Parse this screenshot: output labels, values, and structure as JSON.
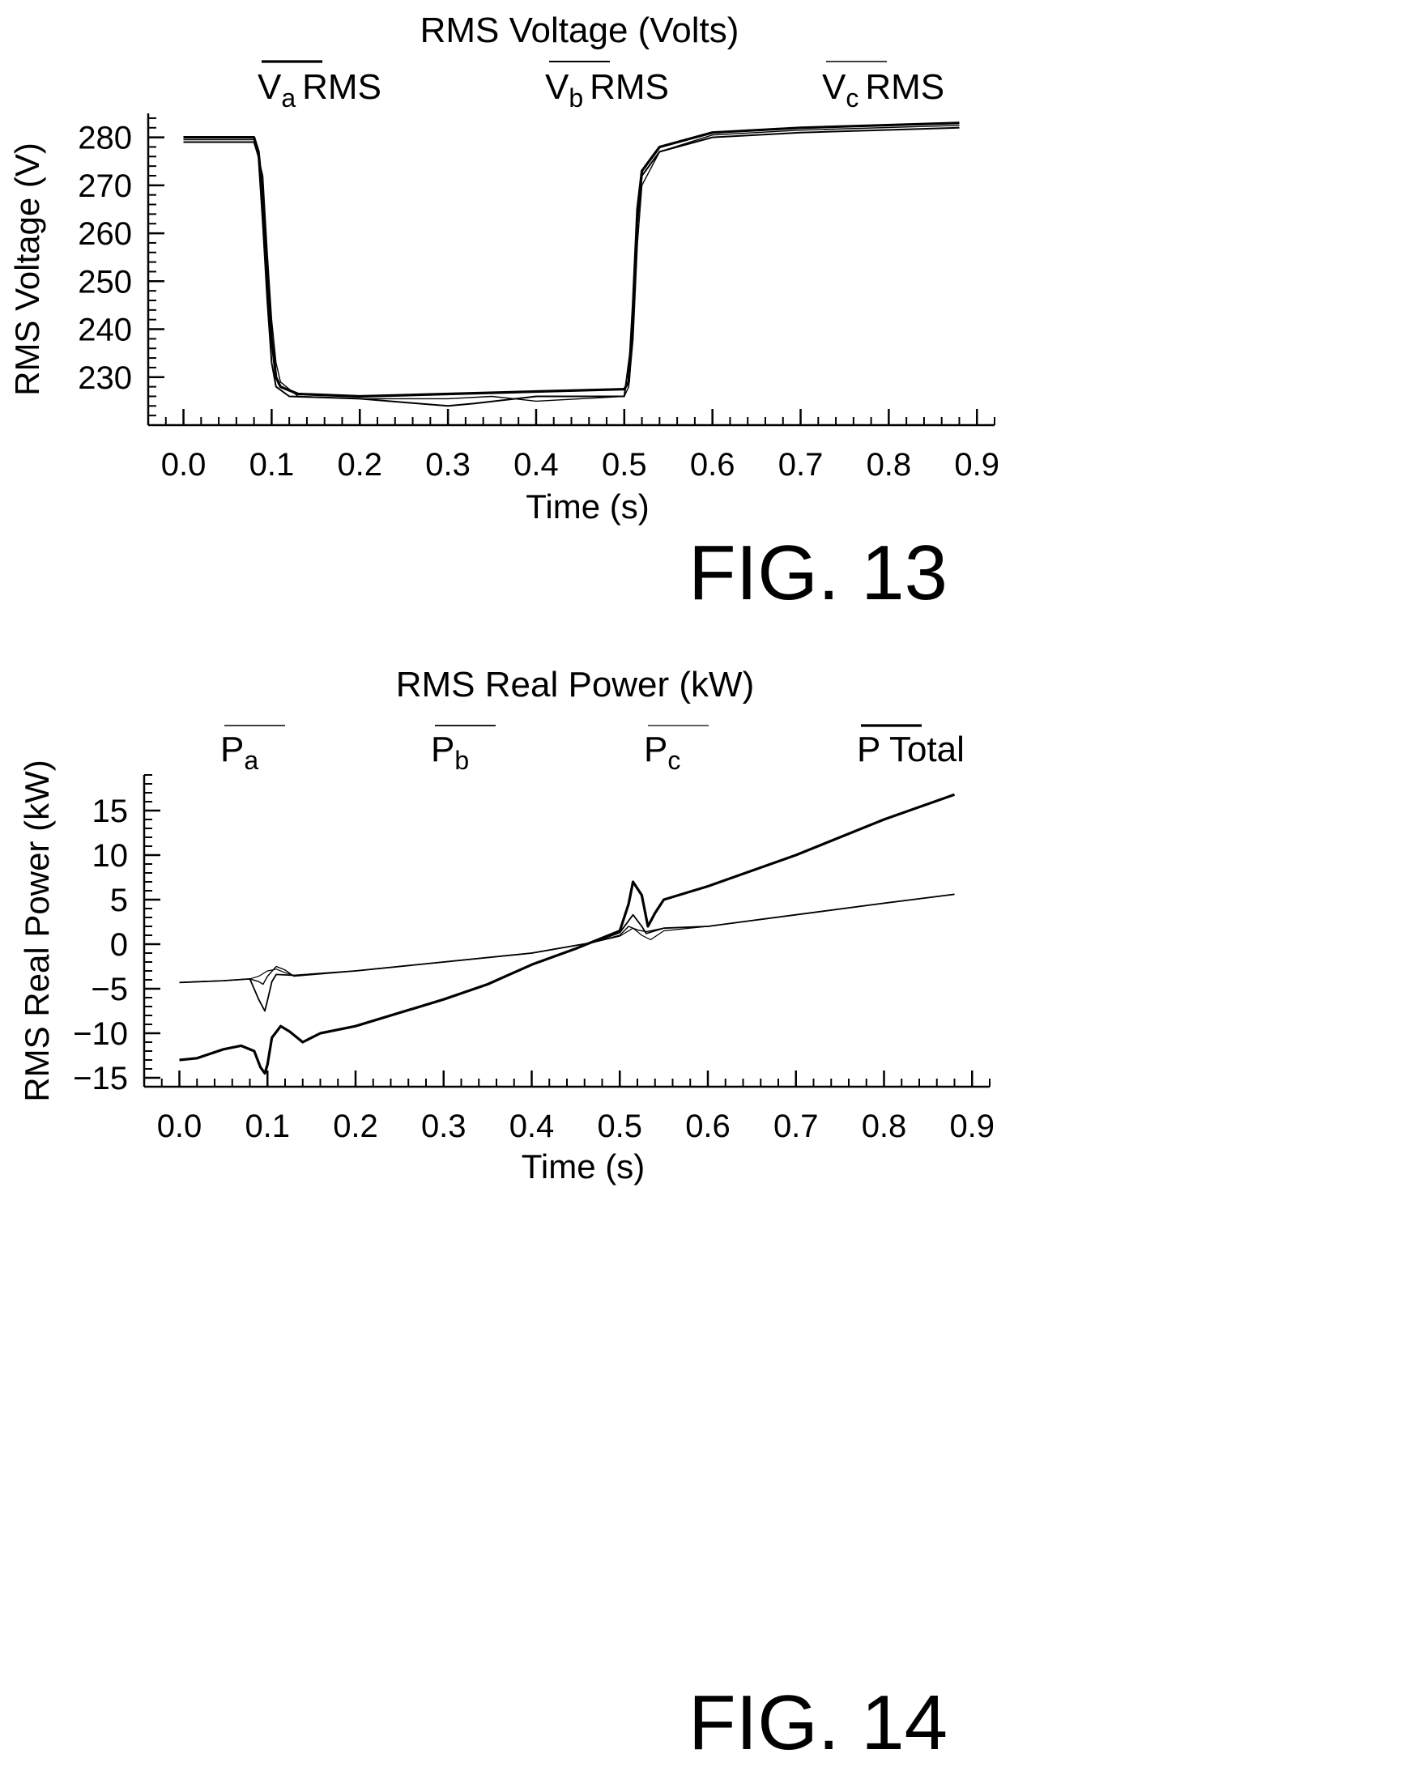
{
  "chart_data": [
    {
      "type": "line",
      "title": "RMS Voltage (Volts)",
      "xlabel": "Time (s)",
      "ylabel": "RMS Voltage (V)",
      "xlim": [
        -0.04,
        0.92
      ],
      "ylim": [
        220,
        285
      ],
      "xticks": [
        "0.0",
        "0.1",
        "0.2",
        "0.3",
        "0.4",
        "0.5",
        "0.6",
        "0.7",
        "0.8",
        "0.9"
      ],
      "yticks": [
        "230",
        "240",
        "250",
        "260",
        "270",
        "280"
      ],
      "legend_position": "top",
      "figure_label": "FIG. 13",
      "series": [
        {
          "name": "Va RMS",
          "legend_main": "V",
          "legend_sub": "a",
          "legend_suffix": "RMS",
          "points": [
            [
              0.0,
              280
            ],
            [
              0.08,
              280
            ],
            [
              0.085,
              277
            ],
            [
              0.09,
              268
            ],
            [
              0.095,
              252
            ],
            [
              0.1,
              238
            ],
            [
              0.105,
              230
            ],
            [
              0.11,
              228
            ],
            [
              0.13,
              226.5
            ],
            [
              0.2,
              226
            ],
            [
              0.3,
              226.5
            ],
            [
              0.4,
              227
            ],
            [
              0.5,
              227.5
            ],
            [
              0.505,
              229
            ],
            [
              0.51,
              245
            ],
            [
              0.515,
              265
            ],
            [
              0.52,
              273
            ],
            [
              0.54,
              278
            ],
            [
              0.6,
              281
            ],
            [
              0.7,
              282
            ],
            [
              0.88,
              283
            ]
          ]
        },
        {
          "name": "Vb RMS",
          "legend_main": "V",
          "legend_sub": "b",
          "legend_suffix": "RMS",
          "points": [
            [
              0.0,
              279
            ],
            [
              0.08,
              279
            ],
            [
              0.085,
              276
            ],
            [
              0.09,
              262
            ],
            [
              0.095,
              246
            ],
            [
              0.1,
              233
            ],
            [
              0.105,
              228
            ],
            [
              0.12,
              226
            ],
            [
              0.2,
              225.5
            ],
            [
              0.3,
              224
            ],
            [
              0.33,
              224.5
            ],
            [
              0.4,
              226
            ],
            [
              0.5,
              226
            ],
            [
              0.51,
              240
            ],
            [
              0.515,
              262
            ],
            [
              0.52,
              272
            ],
            [
              0.54,
              277
            ],
            [
              0.6,
              280
            ],
            [
              0.7,
              281
            ],
            [
              0.88,
              282
            ]
          ]
        },
        {
          "name": "Vc RMS",
          "legend_main": "V",
          "legend_sub": "c",
          "legend_suffix": "RMS",
          "points": [
            [
              0.0,
              279.5
            ],
            [
              0.08,
              279.5
            ],
            [
              0.09,
              272
            ],
            [
              0.095,
              256
            ],
            [
              0.1,
              242
            ],
            [
              0.105,
              233
            ],
            [
              0.11,
              229
            ],
            [
              0.13,
              226
            ],
            [
              0.2,
              225.5
            ],
            [
              0.3,
              225.5
            ],
            [
              0.35,
              226
            ],
            [
              0.4,
              225
            ],
            [
              0.5,
              226
            ],
            [
              0.505,
              228
            ],
            [
              0.51,
              238
            ],
            [
              0.515,
              258
            ],
            [
              0.52,
              270
            ],
            [
              0.54,
              277
            ],
            [
              0.6,
              280.5
            ],
            [
              0.7,
              281.5
            ],
            [
              0.88,
              282.5
            ]
          ]
        }
      ]
    },
    {
      "type": "line",
      "title": "RMS Real Power (kW)",
      "xlabel": "Time (s)",
      "ylabel": "RMS Real Power (kW)",
      "xlim": [
        -0.04,
        0.92
      ],
      "ylim": [
        -16,
        19
      ],
      "xticks": [
        "0.0",
        "0.1",
        "0.2",
        "0.3",
        "0.4",
        "0.5",
        "0.6",
        "0.7",
        "0.8",
        "0.9"
      ],
      "yticks": [
        "−15",
        "−10",
        "−5",
        "0",
        "5",
        "10",
        "15"
      ],
      "legend_position": "top",
      "figure_label": "FIG. 14",
      "series": [
        {
          "name": "Pa",
          "legend_main": "P",
          "legend_sub": "a",
          "legend_suffix": "",
          "points": [
            [
              0.0,
              -4.3
            ],
            [
              0.05,
              -4.1
            ],
            [
              0.08,
              -3.9
            ],
            [
              0.09,
              -4.2
            ],
            [
              0.095,
              -4.5
            ],
            [
              0.1,
              -3.6
            ],
            [
              0.11,
              -2.5
            ],
            [
              0.12,
              -2.9
            ],
            [
              0.13,
              -3.6
            ],
            [
              0.2,
              -3.0
            ],
            [
              0.3,
              -2.0
            ],
            [
              0.4,
              -1.0
            ],
            [
              0.47,
              0.2
            ],
            [
              0.5,
              1.0
            ],
            [
              0.51,
              2.0
            ],
            [
              0.52,
              1.6
            ],
            [
              0.53,
              1.4
            ],
            [
              0.55,
              1.8
            ],
            [
              0.6,
              2.0
            ],
            [
              0.7,
              3.3
            ],
            [
              0.8,
              4.6
            ],
            [
              0.88,
              5.6
            ]
          ]
        },
        {
          "name": "Pb",
          "legend_main": "P",
          "legend_sub": "b",
          "legend_suffix": "",
          "points": [
            [
              0.0,
              -4.3
            ],
            [
              0.05,
              -4.1
            ],
            [
              0.08,
              -3.9
            ],
            [
              0.09,
              -6.2
            ],
            [
              0.097,
              -7.5
            ],
            [
              0.1,
              -6.3
            ],
            [
              0.105,
              -4.2
            ],
            [
              0.11,
              -3.4
            ],
            [
              0.13,
              -3.5
            ],
            [
              0.2,
              -3.0
            ],
            [
              0.3,
              -2.0
            ],
            [
              0.4,
              -1.0
            ],
            [
              0.47,
              0.2
            ],
            [
              0.5,
              1.3
            ],
            [
              0.515,
              3.3
            ],
            [
              0.525,
              2.0
            ],
            [
              0.53,
              1.2
            ],
            [
              0.55,
              1.8
            ],
            [
              0.6,
              2.0
            ],
            [
              0.7,
              3.3
            ],
            [
              0.8,
              4.6
            ],
            [
              0.88,
              5.6
            ]
          ]
        },
        {
          "name": "Pc",
          "legend_main": "P",
          "legend_sub": "c",
          "legend_suffix": "",
          "points": [
            [
              0.0,
              -4.3
            ],
            [
              0.05,
              -4.1
            ],
            [
              0.08,
              -3.9
            ],
            [
              0.09,
              -3.6
            ],
            [
              0.1,
              -3.0
            ],
            [
              0.11,
              -2.8
            ],
            [
              0.12,
              -3.2
            ],
            [
              0.13,
              -3.5
            ],
            [
              0.2,
              -3.0
            ],
            [
              0.3,
              -2.0
            ],
            [
              0.4,
              -1.0
            ],
            [
              0.47,
              0.2
            ],
            [
              0.5,
              0.9
            ],
            [
              0.515,
              1.8
            ],
            [
              0.525,
              1.0
            ],
            [
              0.535,
              0.5
            ],
            [
              0.55,
              1.5
            ],
            [
              0.6,
              2.0
            ],
            [
              0.7,
              3.3
            ],
            [
              0.8,
              4.6
            ],
            [
              0.88,
              5.6
            ]
          ]
        },
        {
          "name": "P Total",
          "legend_main": "P Total",
          "legend_sub": "",
          "legend_suffix": "",
          "points": [
            [
              0.0,
              -13.0
            ],
            [
              0.02,
              -12.8
            ],
            [
              0.05,
              -11.8
            ],
            [
              0.07,
              -11.4
            ],
            [
              0.085,
              -12.0
            ],
            [
              0.092,
              -13.8
            ],
            [
              0.097,
              -14.5
            ],
            [
              0.1,
              -13.5
            ],
            [
              0.105,
              -10.5
            ],
            [
              0.115,
              -9.2
            ],
            [
              0.125,
              -9.8
            ],
            [
              0.14,
              -11.0
            ],
            [
              0.16,
              -10.0
            ],
            [
              0.2,
              -9.2
            ],
            [
              0.3,
              -6.2
            ],
            [
              0.35,
              -4.5
            ],
            [
              0.4,
              -2.3
            ],
            [
              0.45,
              -0.5
            ],
            [
              0.5,
              1.5
            ],
            [
              0.51,
              4.5
            ],
            [
              0.515,
              7.0
            ],
            [
              0.525,
              5.5
            ],
            [
              0.532,
              2.0
            ],
            [
              0.54,
              3.5
            ],
            [
              0.55,
              5.0
            ],
            [
              0.6,
              6.5
            ],
            [
              0.7,
              10.0
            ],
            [
              0.8,
              14.0
            ],
            [
              0.88,
              16.8
            ]
          ]
        }
      ]
    }
  ]
}
